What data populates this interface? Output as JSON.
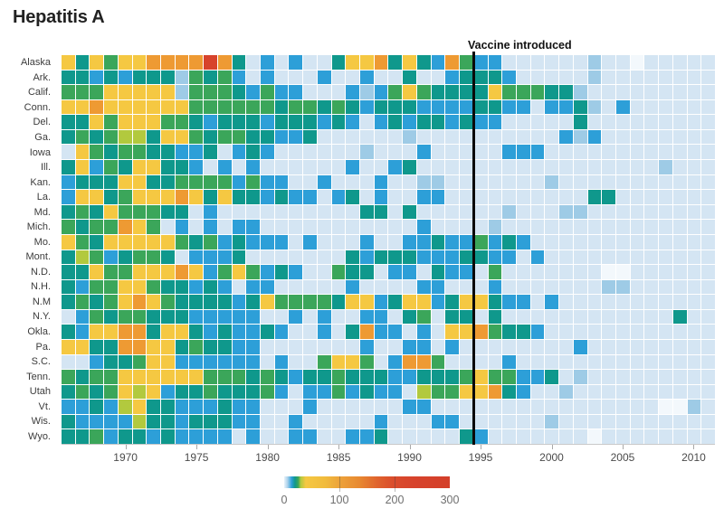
{
  "title": "Hepatitis A",
  "annotation": {
    "label": "Vaccine introduced"
  },
  "chart_data": {
    "type": "heatmap",
    "title": "Hepatitis A",
    "x_axis": {
      "first_year": 1966,
      "last_year": 2011,
      "columns": 46,
      "ticks": [
        1970,
        1975,
        1980,
        1985,
        1990,
        1995,
        2000,
        2005,
        2010
      ]
    },
    "annotation": {
      "label": "Vaccine introduced",
      "year": 1995
    },
    "legend": {
      "min": 0,
      "max": 300,
      "tick_labels": [
        "0",
        "100",
        "200",
        "300"
      ],
      "inner_ticks": [
        100,
        200
      ],
      "gradient": [
        {
          "pos": 0,
          "color": "#e9f2fa"
        },
        {
          "pos": 2,
          "color": "#aed3ec"
        },
        {
          "pos": 4.5,
          "color": "#2d9fd8"
        },
        {
          "pos": 6.5,
          "color": "#0f988c"
        },
        {
          "pos": 8.5,
          "color": "#3ba65a"
        },
        {
          "pos": 10,
          "color": "#b2c93e"
        },
        {
          "pos": 13,
          "color": "#f5c842"
        },
        {
          "pos": 25,
          "color": "#f1bb3c"
        },
        {
          "pos": 33,
          "color": "#eda43a"
        },
        {
          "pos": 45,
          "color": "#e88a31"
        },
        {
          "pos": 56,
          "color": "#e0642d"
        },
        {
          "pos": 66,
          "color": "#da4c2c"
        },
        {
          "pos": 78,
          "color": "#d7432c"
        },
        {
          "pos": 100,
          "color": "#d43f2a"
        }
      ]
    },
    "palette": {
      "w": "#f3f8fc",
      "l": "#d4e5f3",
      "m": "#9ecbe6",
      "b": "#2d9fd8",
      "t": "#0f988c",
      "g": "#3ba65a",
      "G": "#b2c93e",
      "y": "#f5c842",
      "o": "#ee9a33",
      "r": "#d7432c"
    },
    "palette_value_hint": {
      "w": 0,
      "l": 2,
      "m": 6,
      "b": 12,
      "t": 20,
      "g": 30,
      "G": 50,
      "y": 90,
      "o": 170,
      "r": 290
    },
    "rows": [
      {
        "label": "Alaska",
        "cells": "ytygyyoooorotlblblltyyotytbogbbllllllmllwlllll"
      },
      {
        "label": "Ark.",
        "cells": "ttbtbtttmgtgblblllbllblltllbtttblllllmllllllll"
      },
      {
        "label": "Calif.",
        "cells": "gggyyyyymgggtbgbblllbmbgygttttygggttmlllllllll"
      },
      {
        "label": "Conn.",
        "cells": "yyoyyyyyyggggggtggtgtbtttbbbbttbblbbtmlbllllll"
      },
      {
        "label": "Del.",
        "cells": "ttygyyyggtbtttbtttbtblbtbttbtbbllllltlllllllll"
      },
      {
        "label": "Ga.",
        "cells": "tgtgGGtyygtggttbbtllllllmllllllllllbmbllllllll"
      },
      {
        "label": "Iowa",
        "cells": "lygtggttbbtlbtbllllllmlllblllllbbbllllllllllll"
      },
      {
        "label": "Ill.",
        "cells": "tybgtyyttblblbllllllbllbtlllllllllllllllllmlll"
      },
      {
        "label": "Kan.",
        "cells": "btttyyttggggbgbbllblllbllmmlllllllmlllllllllll"
      },
      {
        "label": "La.",
        "cells": "byytgyyyoytyttbtbblbtlbllbbllllllllllttlllllll"
      },
      {
        "label": "Md.",
        "cells": "tgtygggttlbllllllllllttltllllllmlllmmlllllllll"
      },
      {
        "label": "Mich.",
        "cells": "gtggoyglblblbblllllllllllbllllmlllllllllllllll"
      },
      {
        "label": "Mo.",
        "cells": "ygtyyyyygtgbtbbblblllbllbbtbbgbtblllllllllllll"
      },
      {
        "label": "Mont.",
        "cells": "tGgbtggtlbbbtllllllltbtttbbbttbblbllllllllllll"
      },
      {
        "label": "N.D.",
        "cells": "ttyggyyyoybgygbtbllgttlbbltbblglllllllwwllllll"
      },
      {
        "label": "N.H.",
        "cells": "tbggyygttbtblbblllllbllllbblllblllllllmmllllll"
      },
      {
        "label": "N.M",
        "cells": "tgtgyoygttttbtyggggtyybtyybtyytbblblllllllllll"
      },
      {
        "label": "N.Y.",
        "cells": "lbgtggtttbbbbbllblbllbbltglttltlllllllllllltll"
      },
      {
        "label": "Okla.",
        "cells": "tbyyootyytbtbbtbllbltobblblyyogttbllllllllllll"
      },
      {
        "label": "Pa.",
        "cells": "yyttooyytgttbblllllllbllbblbllllllllblllllllll"
      },
      {
        "label": "S.C.",
        "cells": "llbttgyybbbbbblbllgyyglboogllllblllllllllllllل"
      },
      {
        "label": "Tenn.",
        "cells": "gtggyyyyyygggtgtbttgtttbbtttgyggbbtlmlllllllll"
      },
      {
        "label": "Utah",
        "cells": "tgtgyGybttgtttgblbbgbtbblGggyyotbllmllllllllll"
      },
      {
        "label": "Vt.",
        "cells": "bbtbGyttbbbtbblllbllllllbbllllllllllllllllwwml"
      },
      {
        "label": "Wis.",
        "cells": "tbbbbGttbtttbbllblllllblllbbllllllmllllllllllل"
      },
      {
        "label": "Wyo.",
        "cells": "ttgbttbtbbbblbllbbllbbtllllltblllllllwllllllll"
      }
    ]
  }
}
